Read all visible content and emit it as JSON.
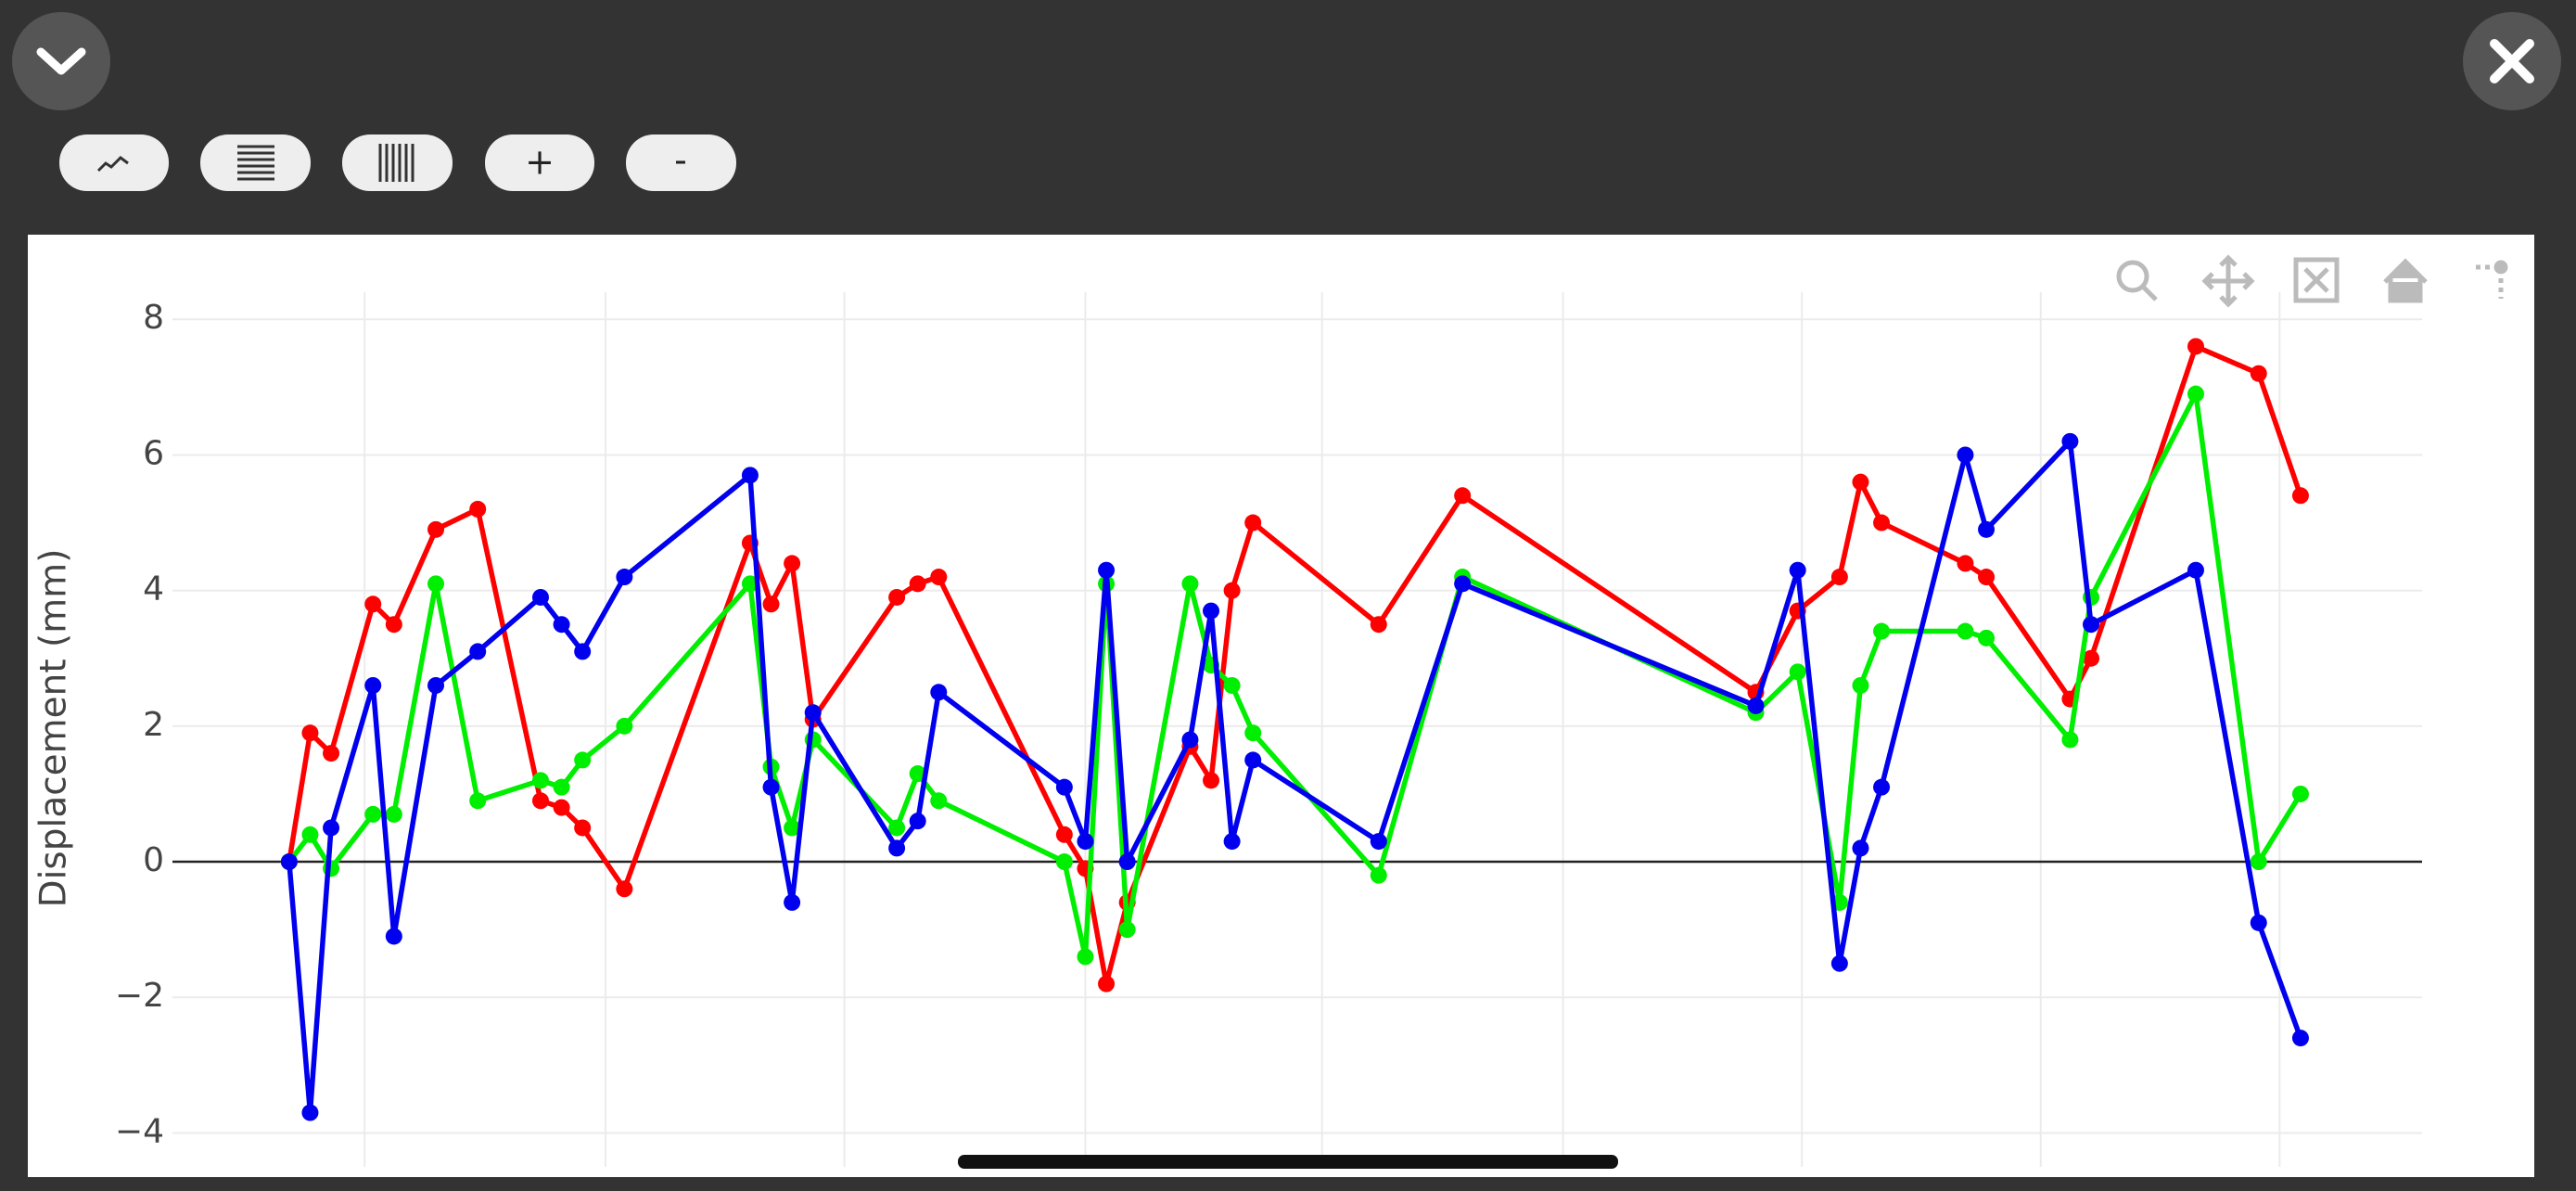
{
  "toolbar": {
    "buttons": [
      "+",
      "-"
    ]
  },
  "chart_data": {
    "type": "line",
    "y_label": "Displacement (mm)",
    "x": [
      0,
      1,
      2,
      4,
      5,
      7,
      9,
      12,
      13,
      14,
      16,
      22,
      23,
      24,
      25,
      29,
      30,
      31,
      37,
      38,
      39,
      40,
      43,
      44,
      45,
      46,
      52,
      56,
      70,
      72,
      74,
      75,
      76,
      80,
      81,
      85,
      86,
      91,
      94,
      96
    ],
    "xlim": [
      -5.57,
      101.8
    ],
    "xticks": [
      3.6,
      15.1,
      26.5,
      38,
      49.3,
      60.8,
      72.2,
      83.6,
      95
    ],
    "ylim": [
      -4.5,
      8.4
    ],
    "yticks": [
      {
        "value": -4,
        "label": "−4"
      },
      {
        "value": -2,
        "label": "−2"
      },
      0,
      2,
      4,
      6,
      8
    ],
    "grid": true,
    "zeroline": true,
    "series": [
      {
        "name": "red",
        "color": "#ff0000",
        "values": [
          0,
          1.9,
          1.6,
          3.8,
          3.5,
          4.9,
          5.2,
          0.9,
          0.8,
          0.5,
          -0.4,
          4.7,
          3.8,
          4.4,
          2.1,
          3.9,
          4.1,
          4.2,
          0.4,
          -0.1,
          -1.8,
          -0.6,
          1.7,
          1.2,
          4.0,
          5.0,
          3.5,
          5.4,
          2.5,
          3.7,
          4.2,
          5.6,
          5.0,
          4.4,
          4.2,
          2.4,
          3.0,
          7.6,
          7.2,
          5.4
        ]
      },
      {
        "name": "green",
        "color": "#00ee00",
        "values": [
          0,
          0.4,
          -0.1,
          0.7,
          0.7,
          4.1,
          0.9,
          1.2,
          1.1,
          1.5,
          2.0,
          4.1,
          1.4,
          0.5,
          1.8,
          0.5,
          1.3,
          0.9,
          0,
          -1.4,
          4.1,
          -1.0,
          4.1,
          2.9,
          2.6,
          1.9,
          -0.2,
          4.2,
          2.2,
          2.8,
          -0.6,
          2.6,
          3.4,
          3.4,
          3.3,
          1.8,
          3.9,
          6.9,
          0,
          1.0
        ]
      },
      {
        "name": "blue",
        "color": "#0000ee",
        "values": [
          0,
          -3.7,
          0.5,
          2.6,
          -1.1,
          2.6,
          3.1,
          3.9,
          3.5,
          3.1,
          4.2,
          5.7,
          1.1,
          -0.6,
          2.2,
          0.2,
          0.6,
          2.5,
          1.1,
          0.3,
          4.3,
          0.0,
          1.8,
          3.7,
          0.3,
          1.5,
          0.3,
          4.1,
          2.3,
          4.3,
          -1.5,
          0.2,
          1.1,
          6.0,
          4.9,
          6.2,
          3.5,
          4.3,
          -0.9,
          -2.6
        ]
      }
    ]
  }
}
